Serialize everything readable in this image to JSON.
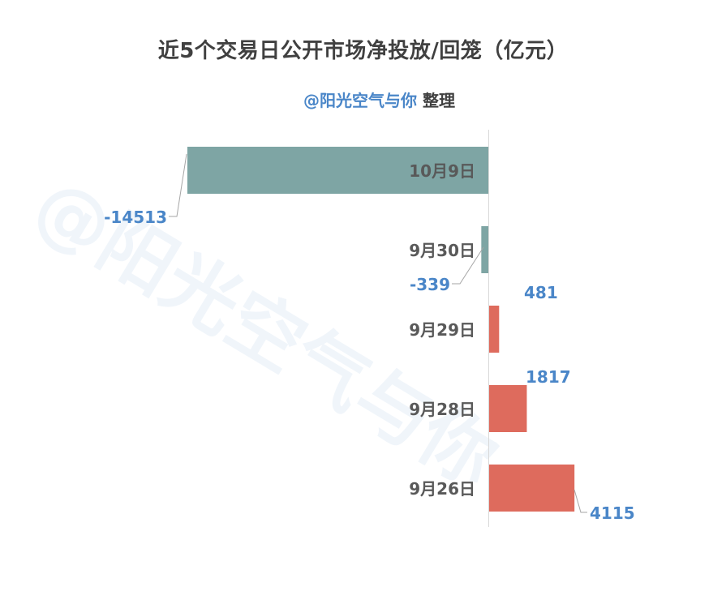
{
  "title": "近5个交易日公开市场净投放/回笼（亿元）",
  "subtitle": {
    "handle": "@阳光空气与你",
    "suffix": "整理"
  },
  "watermark": "@阳光空气与你",
  "colors": {
    "negative": "#7ea5a4",
    "positive": "#de6b5d",
    "value_label": "#4a86c8",
    "category_label": "#595959",
    "axis": "#d9d9d9",
    "leader": "#a6a6a6"
  },
  "chart_data": {
    "type": "bar",
    "orientation": "horizontal",
    "title": "近5个交易日公开市场净投放/回笼（亿元）",
    "categories": [
      "10月9日",
      "9月30日",
      "9月29日",
      "9月28日",
      "9月26日"
    ],
    "values": [
      -14513,
      -339,
      481,
      1817,
      4115
    ],
    "data_labels": [
      "-14513",
      "-339",
      "481",
      "1817",
      "4115"
    ],
    "xlim": [
      -14513,
      4115
    ],
    "grid": false,
    "legend": false
  }
}
